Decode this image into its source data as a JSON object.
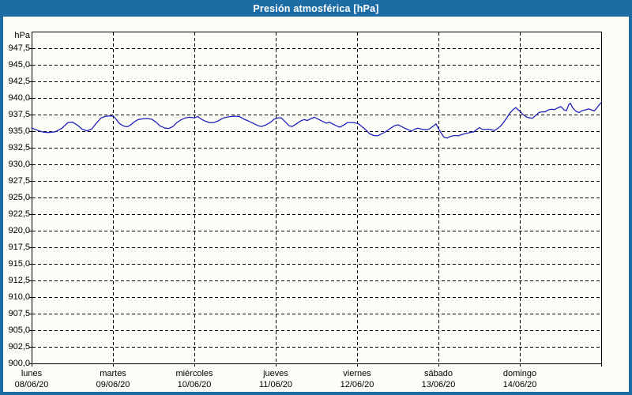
{
  "window": {
    "title": "Presión atmosférica [hPa]"
  },
  "colors": {
    "frame": "#1d6ca4",
    "title_text": "#ffffff",
    "canvas_bg": "#fcfdf6",
    "grid": "#000000",
    "axis": "#000000",
    "line": "#2121bd",
    "label_text": "#000000"
  },
  "chart_data": {
    "type": "line",
    "title": "Presión atmosférica [hPa]",
    "unit_label": "hPa",
    "xlabel": "",
    "ylabel": "hPa",
    "ylim": [
      900.0,
      950.0
    ],
    "ytick_step": 2.5,
    "ytick_labels": [
      "947,5",
      "945,0",
      "942,5",
      "940,0",
      "937,5",
      "935,0",
      "932,5",
      "930,0",
      "927,5",
      "925,0",
      "922,5",
      "920,0",
      "917,5",
      "915,0",
      "912,5",
      "910,0",
      "907,5",
      "905,0",
      "902,5",
      "900,0"
    ],
    "grid": {
      "horizontal": true,
      "vertical": true,
      "style": "dashed"
    },
    "legend": "none",
    "x_axis": {
      "range_days": [
        0,
        7
      ],
      "day_names": [
        "lunes",
        "martes",
        "miércoles",
        "jueves",
        "viernes",
        "sábado",
        "domingo"
      ],
      "dates": [
        "08/06/20",
        "09/06/20",
        "10/06/20",
        "11/06/20",
        "12/06/20",
        "13/06/20",
        "14/06/20"
      ]
    },
    "series": [
      {
        "name": "Presión atmosférica",
        "color": "#2121bd",
        "points_day_hpa": [
          [
            0.0,
            935.5
          ],
          [
            0.078,
            935.1
          ],
          [
            0.146,
            934.85
          ],
          [
            0.214,
            934.8
          ],
          [
            0.291,
            934.9
          ],
          [
            0.369,
            935.4
          ],
          [
            0.447,
            936.3
          ],
          [
            0.505,
            936.35
          ],
          [
            0.563,
            935.9
          ],
          [
            0.621,
            935.3
          ],
          [
            0.68,
            935.05
          ],
          [
            0.738,
            935.3
          ],
          [
            0.796,
            936.2
          ],
          [
            0.854,
            937.0
          ],
          [
            0.913,
            937.25
          ],
          [
            0.981,
            937.3
          ],
          [
            1.01,
            937.2
          ],
          [
            1.039,
            936.8
          ],
          [
            1.068,
            936.3
          ],
          [
            1.097,
            936.0
          ],
          [
            1.136,
            935.75
          ],
          [
            1.175,
            935.65
          ],
          [
            1.214,
            935.9
          ],
          [
            1.262,
            936.4
          ],
          [
            1.311,
            936.75
          ],
          [
            1.359,
            936.85
          ],
          [
            1.417,
            936.9
          ],
          [
            1.476,
            936.8
          ],
          [
            1.524,
            936.4
          ],
          [
            1.583,
            935.75
          ],
          [
            1.641,
            935.45
          ],
          [
            1.689,
            935.4
          ],
          [
            1.738,
            935.7
          ],
          [
            1.786,
            936.3
          ],
          [
            1.835,
            936.7
          ],
          [
            1.893,
            937.0
          ],
          [
            1.942,
            937.1
          ],
          [
            2.0,
            937.0
          ],
          [
            2.039,
            937.2
          ],
          [
            2.087,
            936.8
          ],
          [
            2.136,
            936.5
          ],
          [
            2.194,
            936.25
          ],
          [
            2.243,
            936.3
          ],
          [
            2.301,
            936.6
          ],
          [
            2.359,
            937.0
          ],
          [
            2.417,
            937.15
          ],
          [
            2.485,
            937.25
          ],
          [
            2.553,
            937.2
          ],
          [
            2.612,
            936.8
          ],
          [
            2.67,
            936.5
          ],
          [
            2.728,
            936.15
          ],
          [
            2.786,
            935.8
          ],
          [
            2.825,
            935.7
          ],
          [
            2.874,
            935.9
          ],
          [
            2.932,
            936.3
          ],
          [
            2.981,
            936.8
          ],
          [
            3.029,
            937.0
          ],
          [
            3.068,
            937.0
          ],
          [
            3.117,
            936.4
          ],
          [
            3.165,
            935.8
          ],
          [
            3.204,
            935.7
          ],
          [
            3.252,
            936.1
          ],
          [
            3.301,
            936.5
          ],
          [
            3.35,
            936.75
          ],
          [
            3.388,
            936.6
          ],
          [
            3.437,
            936.9
          ],
          [
            3.476,
            937.1
          ],
          [
            3.524,
            936.8
          ],
          [
            3.573,
            936.5
          ],
          [
            3.621,
            936.2
          ],
          [
            3.66,
            936.35
          ],
          [
            3.699,
            936.1
          ],
          [
            3.748,
            935.8
          ],
          [
            3.786,
            935.6
          ],
          [
            3.835,
            935.9
          ],
          [
            3.883,
            936.3
          ],
          [
            3.932,
            936.3
          ],
          [
            3.971,
            936.25
          ],
          [
            4.01,
            936.15
          ],
          [
            4.058,
            935.7
          ],
          [
            4.107,
            935.2
          ],
          [
            4.155,
            934.6
          ],
          [
            4.204,
            934.35
          ],
          [
            4.252,
            934.3
          ],
          [
            4.301,
            934.6
          ],
          [
            4.35,
            934.9
          ],
          [
            4.408,
            935.4
          ],
          [
            4.456,
            935.8
          ],
          [
            4.505,
            935.95
          ],
          [
            4.544,
            935.7
          ],
          [
            4.592,
            935.4
          ],
          [
            4.641,
            935.15
          ],
          [
            4.67,
            935.0
          ],
          [
            4.709,
            935.3
          ],
          [
            4.748,
            935.45
          ],
          [
            4.796,
            935.3
          ],
          [
            4.845,
            935.2
          ],
          [
            4.883,
            935.3
          ],
          [
            4.932,
            935.7
          ],
          [
            4.971,
            936.1
          ],
          [
            4.99,
            935.6
          ],
          [
            5.029,
            934.8
          ],
          [
            5.068,
            934.1
          ],
          [
            5.107,
            933.95
          ],
          [
            5.146,
            934.2
          ],
          [
            5.194,
            934.35
          ],
          [
            5.243,
            934.3
          ],
          [
            5.291,
            934.5
          ],
          [
            5.34,
            934.65
          ],
          [
            5.388,
            934.8
          ],
          [
            5.437,
            934.9
          ],
          [
            5.476,
            935.3
          ],
          [
            5.505,
            935.55
          ],
          [
            5.534,
            935.3
          ],
          [
            5.573,
            935.25
          ],
          [
            5.612,
            935.3
          ],
          [
            5.65,
            935.2
          ],
          [
            5.689,
            935.1
          ],
          [
            5.728,
            935.4
          ],
          [
            5.767,
            935.8
          ],
          [
            5.806,
            936.4
          ],
          [
            5.845,
            937.1
          ],
          [
            5.883,
            937.8
          ],
          [
            5.922,
            938.3
          ],
          [
            5.951,
            938.55
          ],
          [
            5.981,
            938.2
          ],
          [
            6.01,
            937.9
          ],
          [
            6.039,
            937.5
          ],
          [
            6.078,
            937.15
          ],
          [
            6.117,
            937.0
          ],
          [
            6.155,
            936.95
          ],
          [
            6.194,
            937.35
          ],
          [
            6.233,
            937.8
          ],
          [
            6.272,
            937.9
          ],
          [
            6.311,
            937.9
          ],
          [
            6.35,
            938.2
          ],
          [
            6.388,
            938.3
          ],
          [
            6.427,
            938.25
          ],
          [
            6.466,
            938.5
          ],
          [
            6.505,
            938.7
          ],
          [
            6.544,
            938.2
          ],
          [
            6.573,
            938.1
          ],
          [
            6.602,
            939.0
          ],
          [
            6.621,
            939.2
          ],
          [
            6.65,
            938.5
          ],
          [
            6.689,
            938.0
          ],
          [
            6.728,
            937.8
          ],
          [
            6.767,
            938.1
          ],
          [
            6.806,
            938.2
          ],
          [
            6.845,
            938.35
          ],
          [
            6.883,
            938.2
          ],
          [
            6.913,
            938.05
          ],
          [
            6.942,
            938.4
          ],
          [
            6.971,
            938.9
          ],
          [
            7.0,
            939.3
          ]
        ]
      }
    ]
  }
}
